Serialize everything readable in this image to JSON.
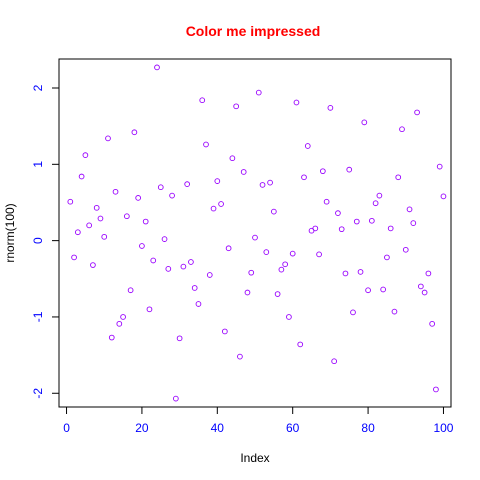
{
  "colors": {
    "title": "#ff0000",
    "points": "#9900ff",
    "ticks": "#0000ff",
    "axis_labels": "#000000",
    "frame": "#000000"
  },
  "chart_data": {
    "type": "scatter",
    "title": "Color me impressed",
    "xlabel": "Index",
    "ylabel": "rnorm(100)",
    "xlim": [
      -2,
      102
    ],
    "ylim": [
      -2.18,
      2.38
    ],
    "x_ticks": [
      0,
      20,
      40,
      60,
      80,
      100
    ],
    "y_ticks": [
      -2,
      -1,
      0,
      1,
      2
    ],
    "x_tick_labels": [
      "0",
      "20",
      "40",
      "60",
      "80",
      "100"
    ],
    "y_tick_labels": [
      "-2",
      "-1",
      "0",
      "1",
      "2"
    ],
    "grid": false,
    "legend": "none",
    "point_style": "open-circle",
    "x": [
      1,
      2,
      3,
      4,
      5,
      6,
      7,
      8,
      9,
      10,
      11,
      12,
      13,
      14,
      15,
      16,
      17,
      18,
      19,
      20,
      21,
      22,
      23,
      24,
      25,
      26,
      27,
      28,
      29,
      30,
      31,
      32,
      33,
      34,
      35,
      36,
      37,
      38,
      39,
      40,
      41,
      42,
      43,
      44,
      45,
      46,
      47,
      48,
      49,
      50,
      51,
      52,
      53,
      54,
      55,
      56,
      57,
      58,
      59,
      60,
      61,
      62,
      63,
      64,
      65,
      66,
      67,
      68,
      69,
      70,
      71,
      72,
      73,
      74,
      75,
      76,
      77,
      78,
      79,
      80,
      81,
      82,
      83,
      84,
      85,
      86,
      87,
      88,
      89,
      90,
      91,
      92,
      93,
      94,
      95,
      96,
      97,
      98,
      99,
      100
    ],
    "y": [
      0.51,
      -0.22,
      0.11,
      0.84,
      1.12,
      0.2,
      -0.32,
      0.43,
      0.29,
      0.05,
      1.34,
      -1.27,
      0.64,
      -1.09,
      -1.0,
      0.32,
      -0.65,
      1.42,
      0.56,
      -0.07,
      0.25,
      -0.9,
      -0.26,
      2.27,
      0.7,
      0.02,
      -0.37,
      0.59,
      -2.07,
      -1.28,
      -0.34,
      0.74,
      -0.28,
      -0.62,
      -0.83,
      1.84,
      1.26,
      -0.45,
      0.42,
      0.78,
      0.48,
      -1.19,
      -0.1,
      1.08,
      1.76,
      -1.52,
      0.9,
      -0.68,
      -0.42,
      0.04,
      1.94,
      0.73,
      -0.15,
      0.76,
      0.38,
      -0.7,
      -0.38,
      -0.31,
      -1.0,
      -0.17,
      1.81,
      -1.36,
      0.83,
      1.24,
      0.13,
      0.16,
      -0.18,
      0.91,
      0.51,
      1.74,
      -1.58,
      0.36,
      0.15,
      -0.43,
      0.93,
      -0.94,
      0.25,
      -0.41,
      1.55,
      -0.65,
      0.26,
      0.49,
      0.59,
      -0.64,
      -0.22,
      0.16,
      -0.93,
      0.83,
      1.46,
      -0.12,
      0.41,
      0.23,
      1.68,
      -0.6,
      -0.68,
      -0.43,
      -1.09,
      -1.95,
      0.97,
      0.58
    ]
  }
}
